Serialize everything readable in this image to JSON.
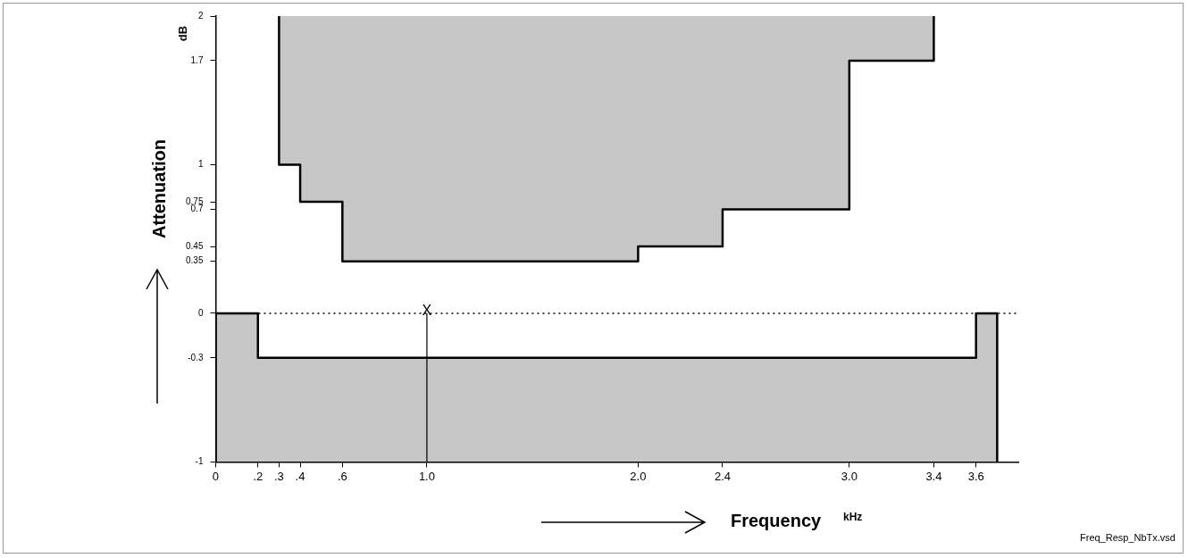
{
  "chart_data": {
    "type": "area",
    "xlabel": "Frequency",
    "ylabel": "Attenuation",
    "annotations": [
      "dB",
      "kHz",
      "Freq_Resp_NbTx.vsd"
    ],
    "series": [
      {
        "type": "area",
        "color": "#000000",
        "x": [
          0.3,
          0.3,
          0.4,
          0.4,
          0.6,
          0.6,
          2.0,
          2.0,
          2.4,
          2.4,
          3.0,
          3.0,
          3.4,
          3.4
        ],
        "values": [
          2,
          1,
          1,
          0.75,
          0.75,
          0.35,
          0.35,
          0.45,
          0.45,
          0.7,
          0.7,
          1.7,
          1.7,
          2
        ]
      },
      {
        "type": "area",
        "color": "#000000",
        "x": [
          0,
          0,
          0.2,
          0.2,
          3.6,
          3.6,
          3.7,
          3.7
        ],
        "values": [
          -1,
          0,
          0,
          -0.3,
          -0.3,
          0,
          0,
          -1
        ]
      }
    ],
    "xlim": [
      0,
      3.8
    ],
    "xticks": [
      0,
      {
        "value": 0.2,
        "label": ".2"
      },
      {
        "value": 0.3,
        "label": ".3"
      },
      {
        "value": 0.4,
        "label": ".4"
      },
      {
        "value": 0.6,
        "label": ".6"
      },
      {
        "value": 1.0,
        "label": "1.0"
      },
      {
        "value": 2.0,
        "label": "2.0"
      },
      2.4,
      {
        "value": 3.0,
        "label": "3.0"
      },
      3.4,
      3.6
    ],
    "ylim": [
      -1,
      2
    ],
    "yticks": [
      -1,
      -0.3,
      0,
      0.35,
      0.45,
      0.7,
      0.75,
      1,
      1.7,
      2
    ],
    "ref_lines": [
      {
        "axis": "y",
        "value": 0,
        "line_style": "dotted",
        "color": "#000000"
      },
      {
        "axis": "x",
        "value": 1.0,
        "label": "X",
        "line_style": "solid",
        "color": "#000000"
      }
    ],
    "grid": false,
    "legend": false,
    "marker": "none"
  }
}
